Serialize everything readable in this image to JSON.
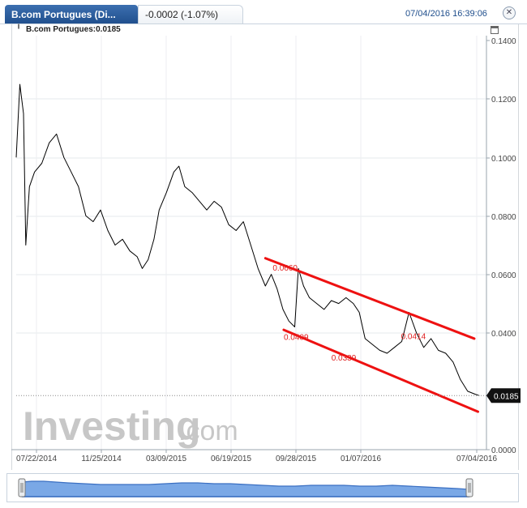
{
  "header": {
    "title": "B.com Portugues (Di...",
    "change": "-0.0002 (-1.07%)",
    "timestamp": "07/04/2016 16:39:06",
    "close_icon": "close-icon"
  },
  "legend": {
    "text": "B.com Portugues:0.0185"
  },
  "watermark": {
    "brand": "Investing",
    "suffix": ".com"
  },
  "chart_data": {
    "type": "line",
    "ylim": [
      0,
      0.14
    ],
    "y_ticks": [
      "0.1400",
      "0.1200",
      "0.1000",
      "0.0800",
      "0.0600",
      "0.0400",
      "0.0000"
    ],
    "x_tick_labels": [
      "07/22/2014",
      "11/25/2014",
      "03/09/2015",
      "06/19/2015",
      "09/28/2015",
      "01/07/2016",
      "07/04/2016"
    ],
    "last_value_label": "0.0185",
    "last_value": 0.0185,
    "series": [
      {
        "color": "#000000",
        "points": [
          [
            0.0,
            0.1
          ],
          [
            0.005,
            0.125
          ],
          [
            0.01,
            0.115
          ],
          [
            0.013,
            0.07
          ],
          [
            0.018,
            0.09
          ],
          [
            0.025,
            0.095
          ],
          [
            0.035,
            0.098
          ],
          [
            0.045,
            0.105
          ],
          [
            0.055,
            0.108
          ],
          [
            0.065,
            0.1
          ],
          [
            0.075,
            0.095
          ],
          [
            0.085,
            0.09
          ],
          [
            0.095,
            0.08
          ],
          [
            0.105,
            0.078
          ],
          [
            0.115,
            0.082
          ],
          [
            0.125,
            0.075
          ],
          [
            0.135,
            0.07
          ],
          [
            0.145,
            0.072
          ],
          [
            0.155,
            0.068
          ],
          [
            0.165,
            0.066
          ],
          [
            0.172,
            0.062
          ],
          [
            0.18,
            0.065
          ],
          [
            0.188,
            0.072
          ],
          [
            0.195,
            0.082
          ],
          [
            0.205,
            0.088
          ],
          [
            0.215,
            0.095
          ],
          [
            0.222,
            0.097
          ],
          [
            0.23,
            0.09
          ],
          [
            0.24,
            0.088
          ],
          [
            0.25,
            0.085
          ],
          [
            0.26,
            0.082
          ],
          [
            0.27,
            0.085
          ],
          [
            0.28,
            0.083
          ],
          [
            0.29,
            0.077
          ],
          [
            0.3,
            0.075
          ],
          [
            0.31,
            0.078
          ],
          [
            0.32,
            0.07
          ],
          [
            0.33,
            0.062
          ],
          [
            0.34,
            0.056
          ],
          [
            0.348,
            0.06
          ],
          [
            0.356,
            0.055
          ],
          [
            0.364,
            0.048
          ],
          [
            0.372,
            0.044
          ],
          [
            0.38,
            0.042
          ],
          [
            0.385,
            0.062
          ],
          [
            0.392,
            0.056
          ],
          [
            0.4,
            0.052
          ],
          [
            0.41,
            0.05
          ],
          [
            0.42,
            0.048
          ],
          [
            0.43,
            0.051
          ],
          [
            0.44,
            0.05
          ],
          [
            0.45,
            0.052
          ],
          [
            0.46,
            0.05
          ],
          [
            0.468,
            0.047
          ],
          [
            0.476,
            0.038
          ],
          [
            0.486,
            0.036
          ],
          [
            0.496,
            0.034
          ],
          [
            0.506,
            0.033
          ],
          [
            0.516,
            0.035
          ],
          [
            0.526,
            0.037
          ],
          [
            0.536,
            0.047
          ],
          [
            0.546,
            0.04
          ],
          [
            0.556,
            0.035
          ],
          [
            0.566,
            0.038
          ],
          [
            0.576,
            0.034
          ],
          [
            0.586,
            0.033
          ],
          [
            0.596,
            0.03
          ],
          [
            0.606,
            0.024
          ],
          [
            0.616,
            0.02
          ],
          [
            0.626,
            0.019
          ],
          [
            0.632,
            0.0185
          ]
        ]
      }
    ],
    "annotations": [
      {
        "text": "0.0660",
        "x": 0.35,
        "y": 0.0612
      },
      {
        "text": "0.0409",
        "x": 0.365,
        "y": 0.0375
      },
      {
        "text": "0.0339",
        "x": 0.43,
        "y": 0.0305
      },
      {
        "text": "0.0414",
        "x": 0.525,
        "y": 0.0378
      }
    ],
    "channel": {
      "color": "#ee1111",
      "upper": [
        [
          0.34,
          0.0655
        ],
        [
          0.625,
          0.038
        ]
      ],
      "lower": [
        [
          0.365,
          0.041
        ],
        [
          0.63,
          0.013
        ]
      ]
    }
  }
}
